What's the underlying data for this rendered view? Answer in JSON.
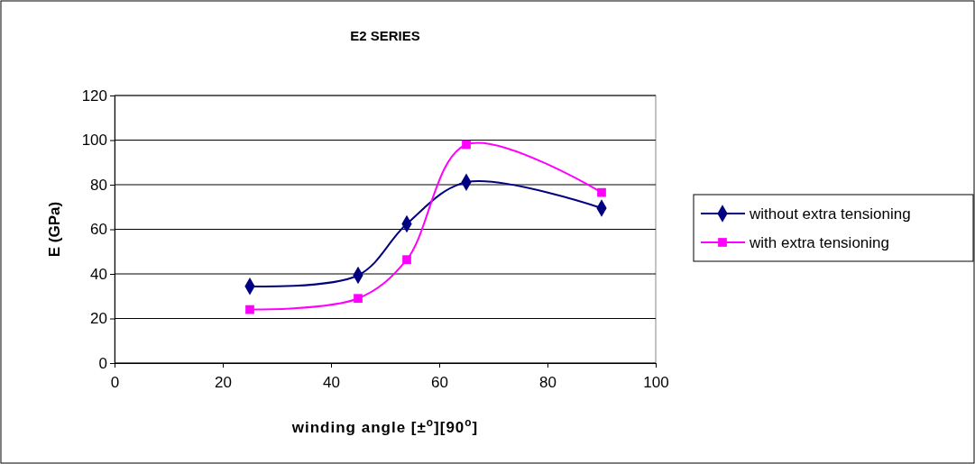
{
  "chart_data": {
    "type": "line",
    "title": "E2 SERIES",
    "xlabel": "winding angle [±$^{o}$][90$^{o}$]",
    "ylabel": "E (GPa)",
    "xlim": [
      0,
      100
    ],
    "xticks": [
      0,
      20,
      40,
      60,
      80,
      100
    ],
    "ylim": [
      0,
      120
    ],
    "yticks": [
      0,
      20,
      40,
      60,
      80,
      100,
      120
    ],
    "grid": "y",
    "legend": "right",
    "series": [
      {
        "name": "without extra tensioning",
        "color": "#000080",
        "marker": "diamond",
        "x": [
          25,
          45,
          54,
          65,
          90
        ],
        "values": [
          34.4,
          39.4,
          62.4,
          81.1,
          69.5
        ]
      },
      {
        "name": "with extra tensioning",
        "color": "#ff00ff",
        "marker": "square",
        "x": [
          25,
          45,
          54,
          65,
          90
        ],
        "values": [
          24.0,
          29.0,
          46.4,
          98.0,
          76.5
        ]
      }
    ]
  }
}
